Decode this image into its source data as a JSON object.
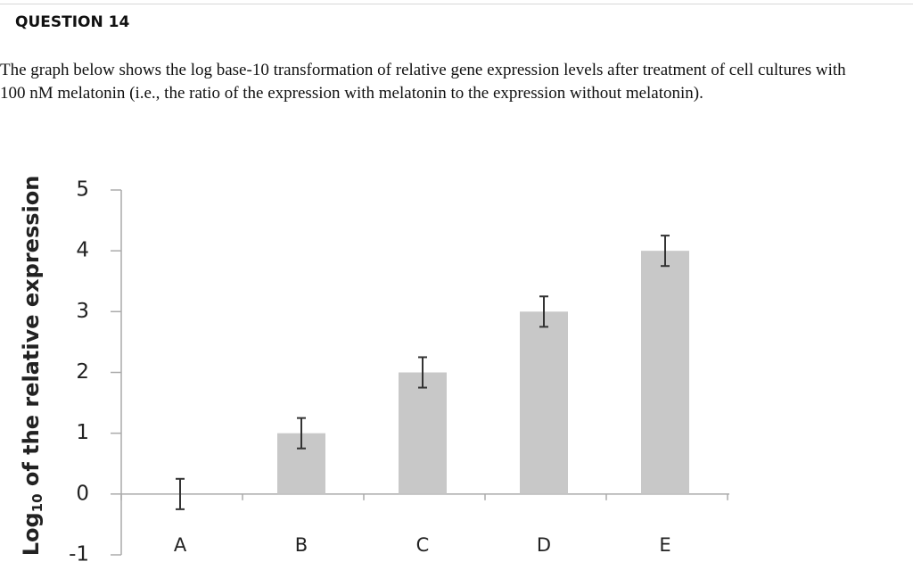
{
  "header": {
    "title": "QUESTION 14"
  },
  "question": {
    "text": "The graph below shows the log base-10 transformation of relative gene expression levels after treatment of cell cultures with 100 nM melatonin (i.e., the ratio of the expression with melatonin to the expression without melatonin)."
  },
  "chart_data": {
    "type": "bar",
    "ylabel": [
      "Log",
      "10",
      " of the relative expression"
    ],
    "categories": [
      "A",
      "B",
      "C",
      "D",
      "E"
    ],
    "values": [
      0,
      1,
      2,
      3,
      4
    ],
    "errors": [
      0.25,
      0.25,
      0.25,
      0.25,
      0.25
    ],
    "color": "#c8c8c8",
    "error_color": "#333333",
    "ylim": [
      -1,
      5
    ],
    "yticks": [
      -1,
      0,
      1,
      2,
      3,
      4,
      5
    ],
    "grid": false
  }
}
